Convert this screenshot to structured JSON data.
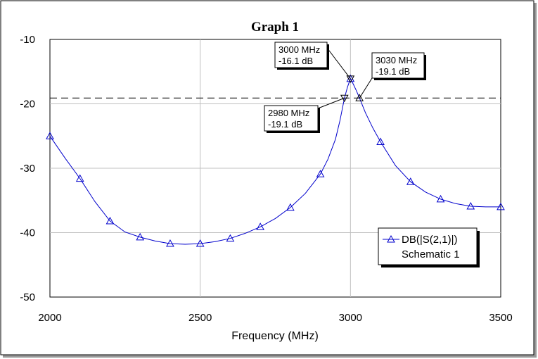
{
  "chart_data": {
    "type": "line",
    "title": "Graph 1",
    "xlabel": "Frequency (MHz)",
    "ylabel": "",
    "xlim": [
      2000,
      3500
    ],
    "ylim": [
      -50,
      -10
    ],
    "x_ticks": [
      "2000",
      "2500",
      "3000",
      "3500"
    ],
    "y_ticks": [
      "-10",
      "-20",
      "-30",
      "-40",
      "-50"
    ],
    "grid": true,
    "legend_position": "bottom-right",
    "reference_line": {
      "y": -19.1,
      "style": "dashed"
    },
    "series": [
      {
        "name": "DB(|S(2,1)|)",
        "sub_label": "Schematic 1",
        "color": "#0000cc",
        "marker": "triangle",
        "x": [
          2000,
          2100,
          2200,
          2300,
          2400,
          2500,
          2600,
          2700,
          2800,
          2900,
          3000,
          3100,
          3200,
          3300,
          3400,
          3500
        ],
        "y": [
          -25.0,
          -31.6,
          -38.2,
          -40.7,
          -41.7,
          -41.7,
          -40.9,
          -39.1,
          -36.1,
          -30.9,
          -16.1,
          -25.9,
          -32.1,
          -34.8,
          -35.9,
          -36.0
        ],
        "curve_x": [
          2000,
          2050,
          2100,
          2150,
          2200,
          2250,
          2300,
          2350,
          2400,
          2450,
          2500,
          2550,
          2600,
          2650,
          2700,
          2750,
          2800,
          2850,
          2900,
          2925,
          2950,
          2965,
          2980,
          2990,
          3000,
          3010,
          3020,
          3030,
          3050,
          3075,
          3100,
          3150,
          3200,
          3250,
          3300,
          3350,
          3400,
          3450,
          3500
        ],
        "curve_y": [
          -25.0,
          -28.4,
          -31.6,
          -35.2,
          -38.2,
          -39.9,
          -40.7,
          -41.3,
          -41.7,
          -41.8,
          -41.7,
          -41.4,
          -40.9,
          -40.1,
          -39.1,
          -37.8,
          -36.1,
          -33.9,
          -30.9,
          -28.6,
          -25.5,
          -22.6,
          -19.1,
          -17.4,
          -16.1,
          -17.0,
          -18.0,
          -19.1,
          -21.4,
          -23.8,
          -25.9,
          -29.6,
          -32.1,
          -33.7,
          -34.8,
          -35.5,
          -35.9,
          -36.0,
          -36.0
        ]
      }
    ],
    "markers": [
      {
        "x": 3000,
        "y": -16.1,
        "label_freq": "3000 MHz",
        "label_val": "-16.1 dB",
        "symbol": "triangle-down"
      },
      {
        "x": 3030,
        "y": -19.1,
        "label_freq": "3030 MHz",
        "label_val": "-19.1 dB",
        "symbol": "triangle-up"
      },
      {
        "x": 2980,
        "y": -19.1,
        "label_freq": "2980 MHz",
        "label_val": "-19.1 dB",
        "symbol": "triangle-down"
      }
    ]
  }
}
